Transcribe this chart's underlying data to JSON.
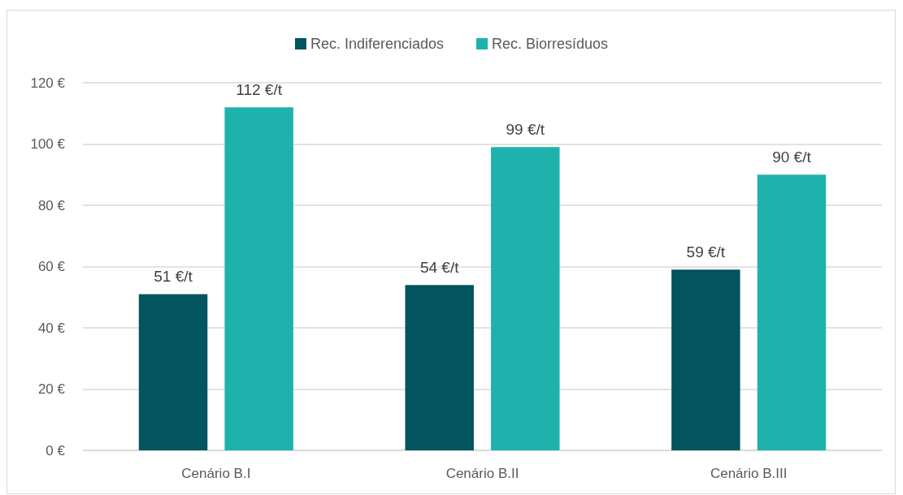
{
  "chart_data": {
    "type": "bar",
    "categories": [
      "Cenário B.I",
      "Cenário B.II",
      "Cenário B.III"
    ],
    "series": [
      {
        "name": "Rec. Indiferenciados",
        "color": "#02545e",
        "values": [
          51,
          54,
          59
        ],
        "value_labels": [
          "51 €/t",
          "54 €/t",
          "59 €/t"
        ]
      },
      {
        "name": "Rec. Biorresíduos",
        "color": "#1eb2ad",
        "values": [
          112,
          99,
          90
        ],
        "value_labels": [
          "112 €/t",
          "99 €/t",
          "90 €/t"
        ]
      }
    ],
    "ylim": [
      0,
      120
    ],
    "yticks": [
      {
        "value": 0,
        "label": "0 €"
      },
      {
        "value": 20,
        "label": "20 €"
      },
      {
        "value": 40,
        "label": "40 €"
      },
      {
        "value": 60,
        "label": "60 €"
      },
      {
        "value": 80,
        "label": "80 €"
      },
      {
        "value": 100,
        "label": "100 €"
      },
      {
        "value": 120,
        "label": "120 €"
      }
    ],
    "grid": "y",
    "legend": "top"
  }
}
